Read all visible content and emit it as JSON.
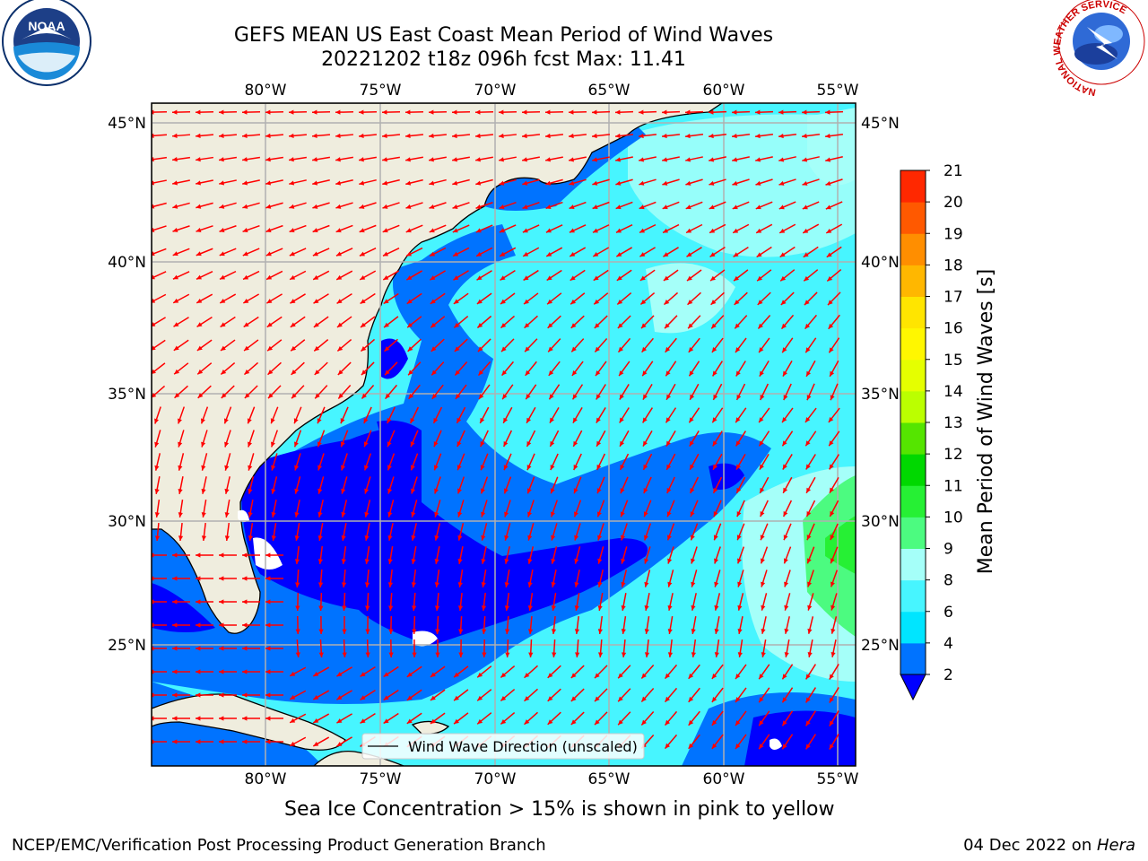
{
  "title": {
    "line1": "GEFS MEAN US East Coast Mean Period of Wind Waves",
    "line2": "20221202 t18z 096h fcst   Max: 11.41"
  },
  "logos": {
    "left": {
      "icon": "noaa-logo-icon",
      "text": "NOAA"
    },
    "right": {
      "icon": "nws-logo-icon",
      "ring_text": "NATIONAL WEATHER SERVICE"
    }
  },
  "map": {
    "lon_ticks": [
      "80°W",
      "75°W",
      "70°W",
      "65°W",
      "60°W",
      "55°W"
    ],
    "lat_ticks": [
      "45°N",
      "40°N",
      "35°N",
      "30°N",
      "25°N"
    ],
    "legend_label": "Wind Wave Direction (unscaled)",
    "arrow_color": "#ff0000",
    "land_color": "#efedde",
    "gridline_color": "#b0b0b0"
  },
  "colorbar": {
    "label": "Mean Period of Wind Waves [s]",
    "ticks": [
      "2",
      "4",
      "6",
      "8",
      "9",
      "10",
      "11",
      "12",
      "13",
      "14",
      "15",
      "16",
      "17",
      "18",
      "19",
      "20",
      "21"
    ],
    "colors": [
      "#0073ff",
      "#00e5ff",
      "#47f5ff",
      "#a5fff9",
      "#4cfb80",
      "#26f034",
      "#00d800",
      "#55e500",
      "#bbff00",
      "#e5ff00",
      "#fff700",
      "#ffe500",
      "#ffb700",
      "#ff8e00",
      "#ff5900",
      "#ff2800",
      "#ff0000"
    ],
    "extend_color": "#0000ff"
  },
  "caption": "Sea Ice Concentration > 15% is shown in pink to yellow",
  "footer": {
    "left": "NCEP/EMC/Verification Post Processing Product Generation Branch",
    "right_date": "04 Dec 2022 on ",
    "right_host": "Hera"
  }
}
